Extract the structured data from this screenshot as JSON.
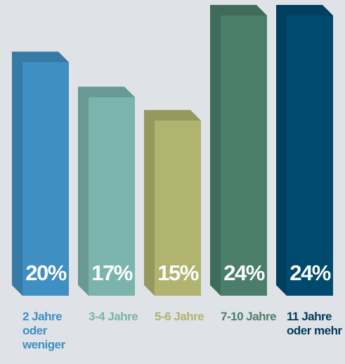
{
  "chart_data": {
    "type": "bar",
    "categories": [
      "2 Jahre oder weniger",
      "3-4 Jahre",
      "5-6 Jahre",
      "7-10 Jahre",
      "11 Jahre oder mehr"
    ],
    "values": [
      20,
      17,
      15,
      24,
      24
    ],
    "value_labels": [
      "20%",
      "17%",
      "15%",
      "24%",
      "24%"
    ],
    "colors": [
      "#3f8fc3",
      "#7ab4ad",
      "#b0b46e",
      "#4a7e6a",
      "#004a6f"
    ]
  }
}
